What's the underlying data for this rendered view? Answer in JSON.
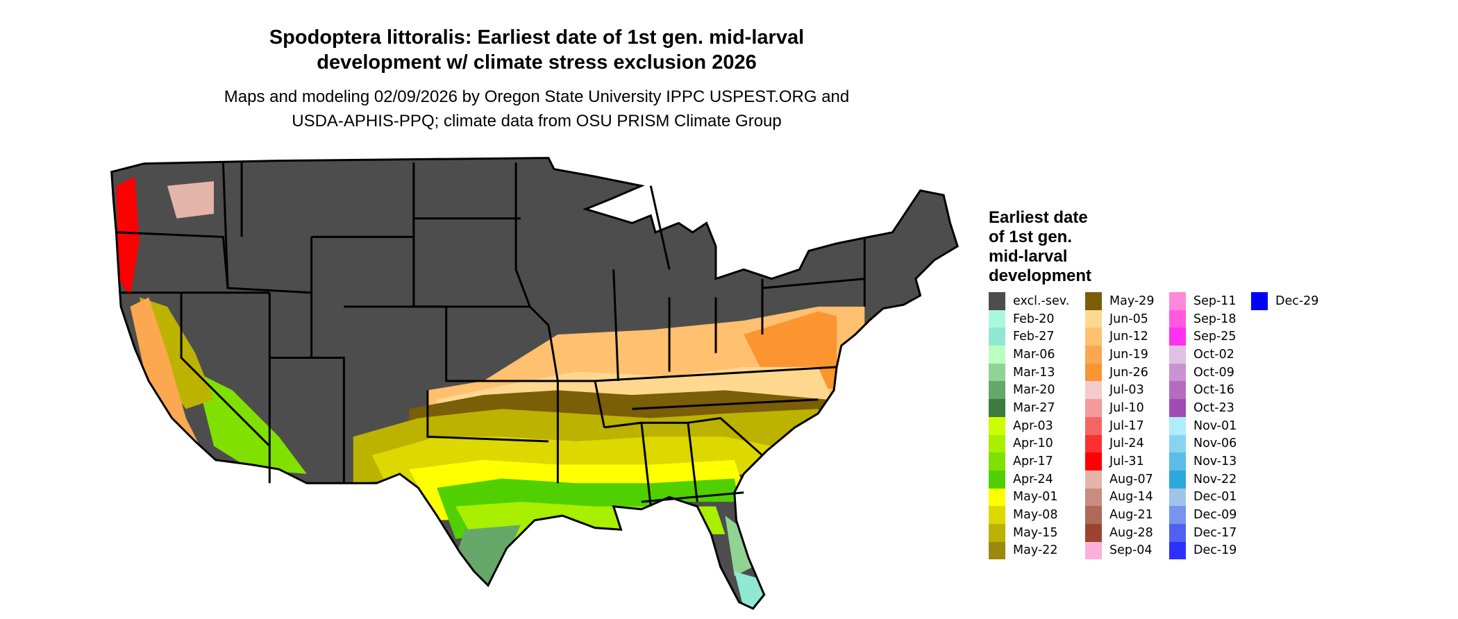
{
  "title": {
    "line1": "Spodoptera littoralis: Earliest date of 1st gen. mid-larval",
    "line2": "development w/ climate stress exclusion 2026"
  },
  "subtitle": {
    "line1": "Maps and modeling 02/09/2026 by Oregon State University IPPC USPEST.ORG and",
    "line2": "USDA-APHIS-PPQ; climate data from OSU PRISM Climate Group"
  },
  "map": {
    "region": "contiguous United States",
    "base_color": "#4d4d4d",
    "border_color": "#000000"
  },
  "legend": {
    "title_lines": [
      "Earliest date",
      "of 1st gen.",
      "mid-larval",
      "development"
    ],
    "columns": [
      [
        {
          "label": "excl.-sev.",
          "color": "#4d4d4d"
        },
        {
          "label": "Feb-20",
          "color": "#aaf7e0"
        },
        {
          "label": "Feb-27",
          "color": "#90e8d2"
        },
        {
          "label": "Mar-06",
          "color": "#bbffc0"
        },
        {
          "label": "Mar-13",
          "color": "#90d494"
        },
        {
          "label": "Mar-20",
          "color": "#66a86a"
        },
        {
          "label": "Mar-27",
          "color": "#3d7b3f"
        },
        {
          "label": "Apr-03",
          "color": "#ccff00"
        },
        {
          "label": "Apr-10",
          "color": "#a8ef00"
        },
        {
          "label": "Apr-17",
          "color": "#80e000"
        },
        {
          "label": "Apr-24",
          "color": "#50d000"
        },
        {
          "label": "May-01",
          "color": "#ffff00"
        },
        {
          "label": "May-08",
          "color": "#dcd800"
        },
        {
          "label": "May-15",
          "color": "#bcb200"
        },
        {
          "label": "May-22",
          "color": "#9c880a"
        }
      ],
      [
        {
          "label": "May-29",
          "color": "#7a5e08"
        },
        {
          "label": "Jun-05",
          "color": "#ffd890"
        },
        {
          "label": "Jun-12",
          "color": "#ffc070"
        },
        {
          "label": "Jun-19",
          "color": "#fca850"
        },
        {
          "label": "Jun-26",
          "color": "#fc9430"
        },
        {
          "label": "Jul-03",
          "color": "#f4cacc"
        },
        {
          "label": "Jul-10",
          "color": "#f49a98"
        },
        {
          "label": "Jul-17",
          "color": "#f46666"
        },
        {
          "label": "Jul-24",
          "color": "#fc3030"
        },
        {
          "label": "Jul-31",
          "color": "#ff0000"
        },
        {
          "label": "Aug-07",
          "color": "#e4b4aa"
        },
        {
          "label": "Aug-14",
          "color": "#c88c80"
        },
        {
          "label": "Aug-21",
          "color": "#b06858"
        },
        {
          "label": "Aug-28",
          "color": "#9c4430"
        },
        {
          "label": "Sep-04",
          "color": "#fcb0dc"
        }
      ],
      [
        {
          "label": "Sep-11",
          "color": "#ff88dc"
        },
        {
          "label": "Sep-18",
          "color": "#ff5ae0"
        },
        {
          "label": "Sep-25",
          "color": "#ff30f0"
        },
        {
          "label": "Oct-02",
          "color": "#e0c0e4"
        },
        {
          "label": "Oct-09",
          "color": "#c894d0"
        },
        {
          "label": "Oct-16",
          "color": "#b46cc0"
        },
        {
          "label": "Oct-23",
          "color": "#a04cb8"
        },
        {
          "label": "Nov-01",
          "color": "#b0ecfc"
        },
        {
          "label": "Nov-06",
          "color": "#88d4f0"
        },
        {
          "label": "Nov-13",
          "color": "#5cbce8"
        },
        {
          "label": "Nov-22",
          "color": "#2ca8dc"
        },
        {
          "label": "Dec-01",
          "color": "#a0c4e8"
        },
        {
          "label": "Dec-09",
          "color": "#7894ec"
        },
        {
          "label": "Dec-17",
          "color": "#5060f0"
        },
        {
          "label": "Dec-19",
          "color": "#2c30ff"
        }
      ],
      [
        {
          "label": "Dec-29",
          "color": "#0000ff"
        }
      ]
    ]
  }
}
